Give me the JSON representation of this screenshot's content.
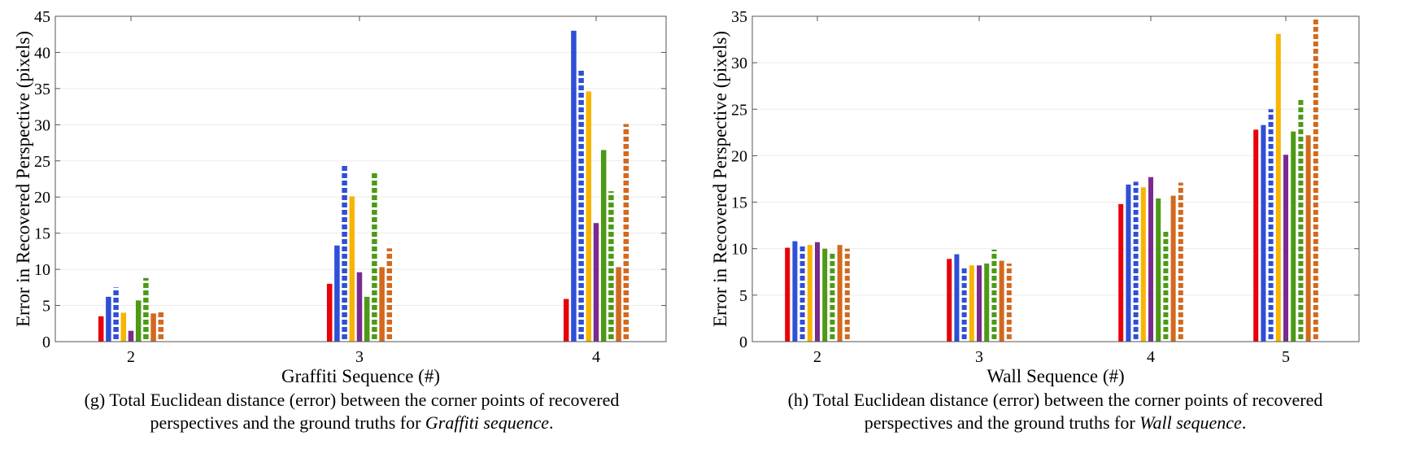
{
  "colors": [
    "#e8000b",
    "#2e4fd6",
    "#f7b500",
    "#7a2a8e",
    "#4c9a16",
    "#d2691e"
  ],
  "chart_data": [
    {
      "type": "bar",
      "xlabel": "Graffiti Sequence (#)",
      "ylabel": "Error in Recovered Perspective (pixels)",
      "ylim": [
        0,
        45
      ],
      "yticks": [
        0,
        5,
        10,
        15,
        20,
        25,
        30,
        35,
        40,
        45
      ],
      "categories": [
        "2",
        "3",
        "4"
      ],
      "grid": true,
      "series": [
        {
          "values": [
            3.5,
            8.0,
            5.9
          ],
          "color": "#e8000b",
          "dashed": false
        },
        {
          "values": [
            6.2,
            13.3,
            43.0
          ],
          "color": "#2e4fd6",
          "dashed": false
        },
        {
          "values": [
            7.5,
            24.3,
            37.5
          ],
          "color": "#2e4fd6",
          "dashed": true
        },
        {
          "values": [
            4.0,
            20.1,
            34.6
          ],
          "color": "#f7b500",
          "dashed": false
        },
        {
          "values": [
            1.5,
            9.6,
            16.4
          ],
          "color": "#7a2a8e",
          "dashed": false
        },
        {
          "values": [
            5.7,
            6.2,
            26.5
          ],
          "color": "#4c9a16",
          "dashed": false
        },
        {
          "values": [
            8.8,
            23.5,
            20.8
          ],
          "color": "#4c9a16",
          "dashed": true
        },
        {
          "values": [
            3.9,
            10.3,
            10.3
          ],
          "color": "#d2691e",
          "dashed": false
        },
        {
          "values": [
            4.3,
            12.9,
            30.1
          ],
          "color": "#d2691e",
          "dashed": true
        }
      ]
    },
    {
      "type": "bar",
      "xlabel": "Wall Sequence (#)",
      "ylabel": "Error in Recovered Perspective (pixels)",
      "ylim": [
        0,
        35
      ],
      "yticks": [
        0,
        5,
        10,
        15,
        20,
        25,
        30,
        35
      ],
      "categories": [
        "2",
        "3",
        "4",
        "5"
      ],
      "grid": true,
      "series": [
        {
          "values": [
            10.1,
            8.9,
            14.8,
            22.8
          ],
          "color": "#e8000b",
          "dashed": false
        },
        {
          "values": [
            10.8,
            9.4,
            16.9,
            23.3
          ],
          "color": "#2e4fd6",
          "dashed": false
        },
        {
          "values": [
            10.5,
            7.9,
            17.2,
            25.0
          ],
          "color": "#2e4fd6",
          "dashed": true
        },
        {
          "values": [
            10.4,
            8.2,
            16.6,
            33.1
          ],
          "color": "#f7b500",
          "dashed": false
        },
        {
          "values": [
            10.7,
            8.2,
            17.7,
            20.1
          ],
          "color": "#7a2a8e",
          "dashed": false
        },
        {
          "values": [
            10.0,
            8.4,
            15.4,
            22.6
          ],
          "color": "#4c9a16",
          "dashed": false
        },
        {
          "values": [
            9.7,
            9.9,
            12.0,
            26.0
          ],
          "color": "#4c9a16",
          "dashed": true
        },
        {
          "values": [
            10.4,
            8.7,
            15.7,
            22.2
          ],
          "color": "#d2691e",
          "dashed": false
        },
        {
          "values": [
            10.0,
            8.4,
            17.1,
            34.8
          ],
          "color": "#d2691e",
          "dashed": true
        }
      ]
    }
  ],
  "captions": {
    "g": {
      "line1": "(g) Total Euclidean distance (error) between the corner points of  recovered",
      "line2_pre": "perspectives and the ground truths for ",
      "line2_em": "Graffiti sequence",
      "line2_post": "."
    },
    "h": {
      "line1": "(h) Total Euclidean distance (error) between the corner points of  recovered",
      "line2_pre": "perspectives and the ground truths for ",
      "line2_em": "Wall sequence",
      "line2_post": "."
    }
  }
}
